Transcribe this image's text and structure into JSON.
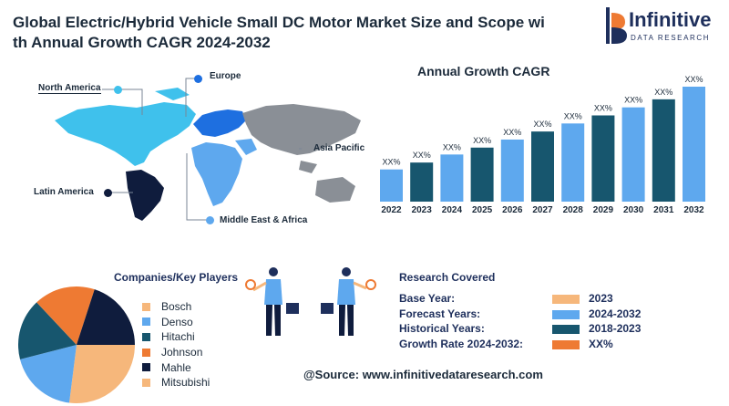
{
  "header": {
    "title_line1": "Global Electric/Hybrid Vehicle Small DC Motor Market Size and Scope wi",
    "title_line2": "th Annual Growth CAGR 2024-2032"
  },
  "logo": {
    "name": "Infinitive",
    "subtitle": "DATA RESEARCH"
  },
  "map": {
    "regions": [
      {
        "label": "North America",
        "color": "#3fc1ec"
      },
      {
        "label": "Europe",
        "color": "#1e6fe0"
      },
      {
        "label": "Asia Pacific",
        "color": "#8a8f96"
      },
      {
        "label": "Latin America",
        "color": "#0f1c3d"
      },
      {
        "label": "Middle East & Africa",
        "color": "#5ea8ee"
      }
    ]
  },
  "chart_data": {
    "type": "bar",
    "title": "Annual Growth CAGR",
    "categories": [
      "2022",
      "2023",
      "2024",
      "2025",
      "2026",
      "2027",
      "2028",
      "2029",
      "2030",
      "2031",
      "2032"
    ],
    "value_labels": [
      "XX%",
      "XX%",
      "XX%",
      "XX%",
      "XX%",
      "XX%",
      "XX%",
      "XX%",
      "XX%",
      "XX%",
      "XX%"
    ],
    "relative_heights": [
      0.28,
      0.34,
      0.41,
      0.47,
      0.54,
      0.61,
      0.68,
      0.75,
      0.82,
      0.89,
      1.0
    ],
    "colors": [
      "#5ea8ee",
      "#17566e",
      "#5ea8ee",
      "#17566e",
      "#5ea8ee",
      "#17566e",
      "#5ea8ee",
      "#17566e",
      "#5ea8ee",
      "#17566e",
      "#5ea8ee"
    ],
    "note": "bar values are not printed; only XX% placeholders are shown"
  },
  "companies": {
    "heading": "Companies/Key Players",
    "items": [
      {
        "label": "Bosch",
        "color": "#f6b77b",
        "share": 0.27
      },
      {
        "label": "Denso",
        "color": "#5ea8ee",
        "share": 0.19
      },
      {
        "label": "Hitachi",
        "color": "#17566e",
        "share": 0.17
      },
      {
        "label": "Johnson",
        "color": "#ee7a33",
        "share": 0.17
      },
      {
        "label": "Mahle",
        "color": "#0f1c3d",
        "share": 0.2
      },
      {
        "label": "Mitsubishi",
        "color": "#f6b77b",
        "share": 0.0
      }
    ]
  },
  "research": {
    "heading": "Research Covered",
    "rows": [
      {
        "label": "Base Year:",
        "value": "2023",
        "color": "#f6b77b"
      },
      {
        "label": "Forecast Years:",
        "value": "2024-2032",
        "color": "#5ea8ee"
      },
      {
        "label": "Historical Years:",
        "value": "2018-2023",
        "color": "#17566e"
      },
      {
        "label": "Growth Rate 2024-2032:",
        "value": "XX%",
        "color": "#ee7a33"
      }
    ]
  },
  "source": "@Source: www.infinitivedataresearch.com"
}
